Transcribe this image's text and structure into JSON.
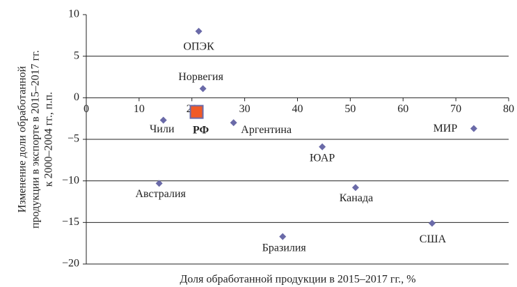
{
  "chart_data": {
    "type": "scatter",
    "ylabel": [
      "Изменение доли обработанной",
      "продукции в экспорте в 2015–2017 гг.",
      "к 2000–2004 гг., п.п."
    ],
    "xlabel": "Доля обработанной продукции в 2015–2017 гг., %",
    "labels": [
      "ОПЭК",
      "Норвегия",
      "Чили",
      "РФ",
      "Аргентина",
      "МИР",
      "ЮАР",
      "Австралия",
      "Канада",
      "Бразилия",
      "США"
    ],
    "x": [
      21.3,
      22.1,
      14.6,
      20.9,
      27.9,
      73.4,
      44.7,
      13.8,
      51.0,
      37.2,
      65.5
    ],
    "y": [
      8.0,
      1.1,
      -2.7,
      -1.7,
      -3.0,
      -3.7,
      -5.9,
      -10.3,
      -10.8,
      -16.7,
      -15.1
    ],
    "color": "#6a6aa8",
    "highlight": {
      "index": 3,
      "color": "#f05a28"
    },
    "xlim": [
      0,
      80
    ],
    "xticks": [
      0,
      10,
      20,
      30,
      40,
      50,
      60,
      70,
      80
    ],
    "ylim": [
      -20,
      10
    ],
    "yticks": [
      {
        "value": -20,
        "label": "−20"
      },
      {
        "value": -15,
        "label": "−15"
      },
      {
        "value": -10,
        "label": "−10"
      },
      {
        "value": -5,
        "label": "−5"
      },
      0,
      5,
      10
    ],
    "grid": true
  }
}
